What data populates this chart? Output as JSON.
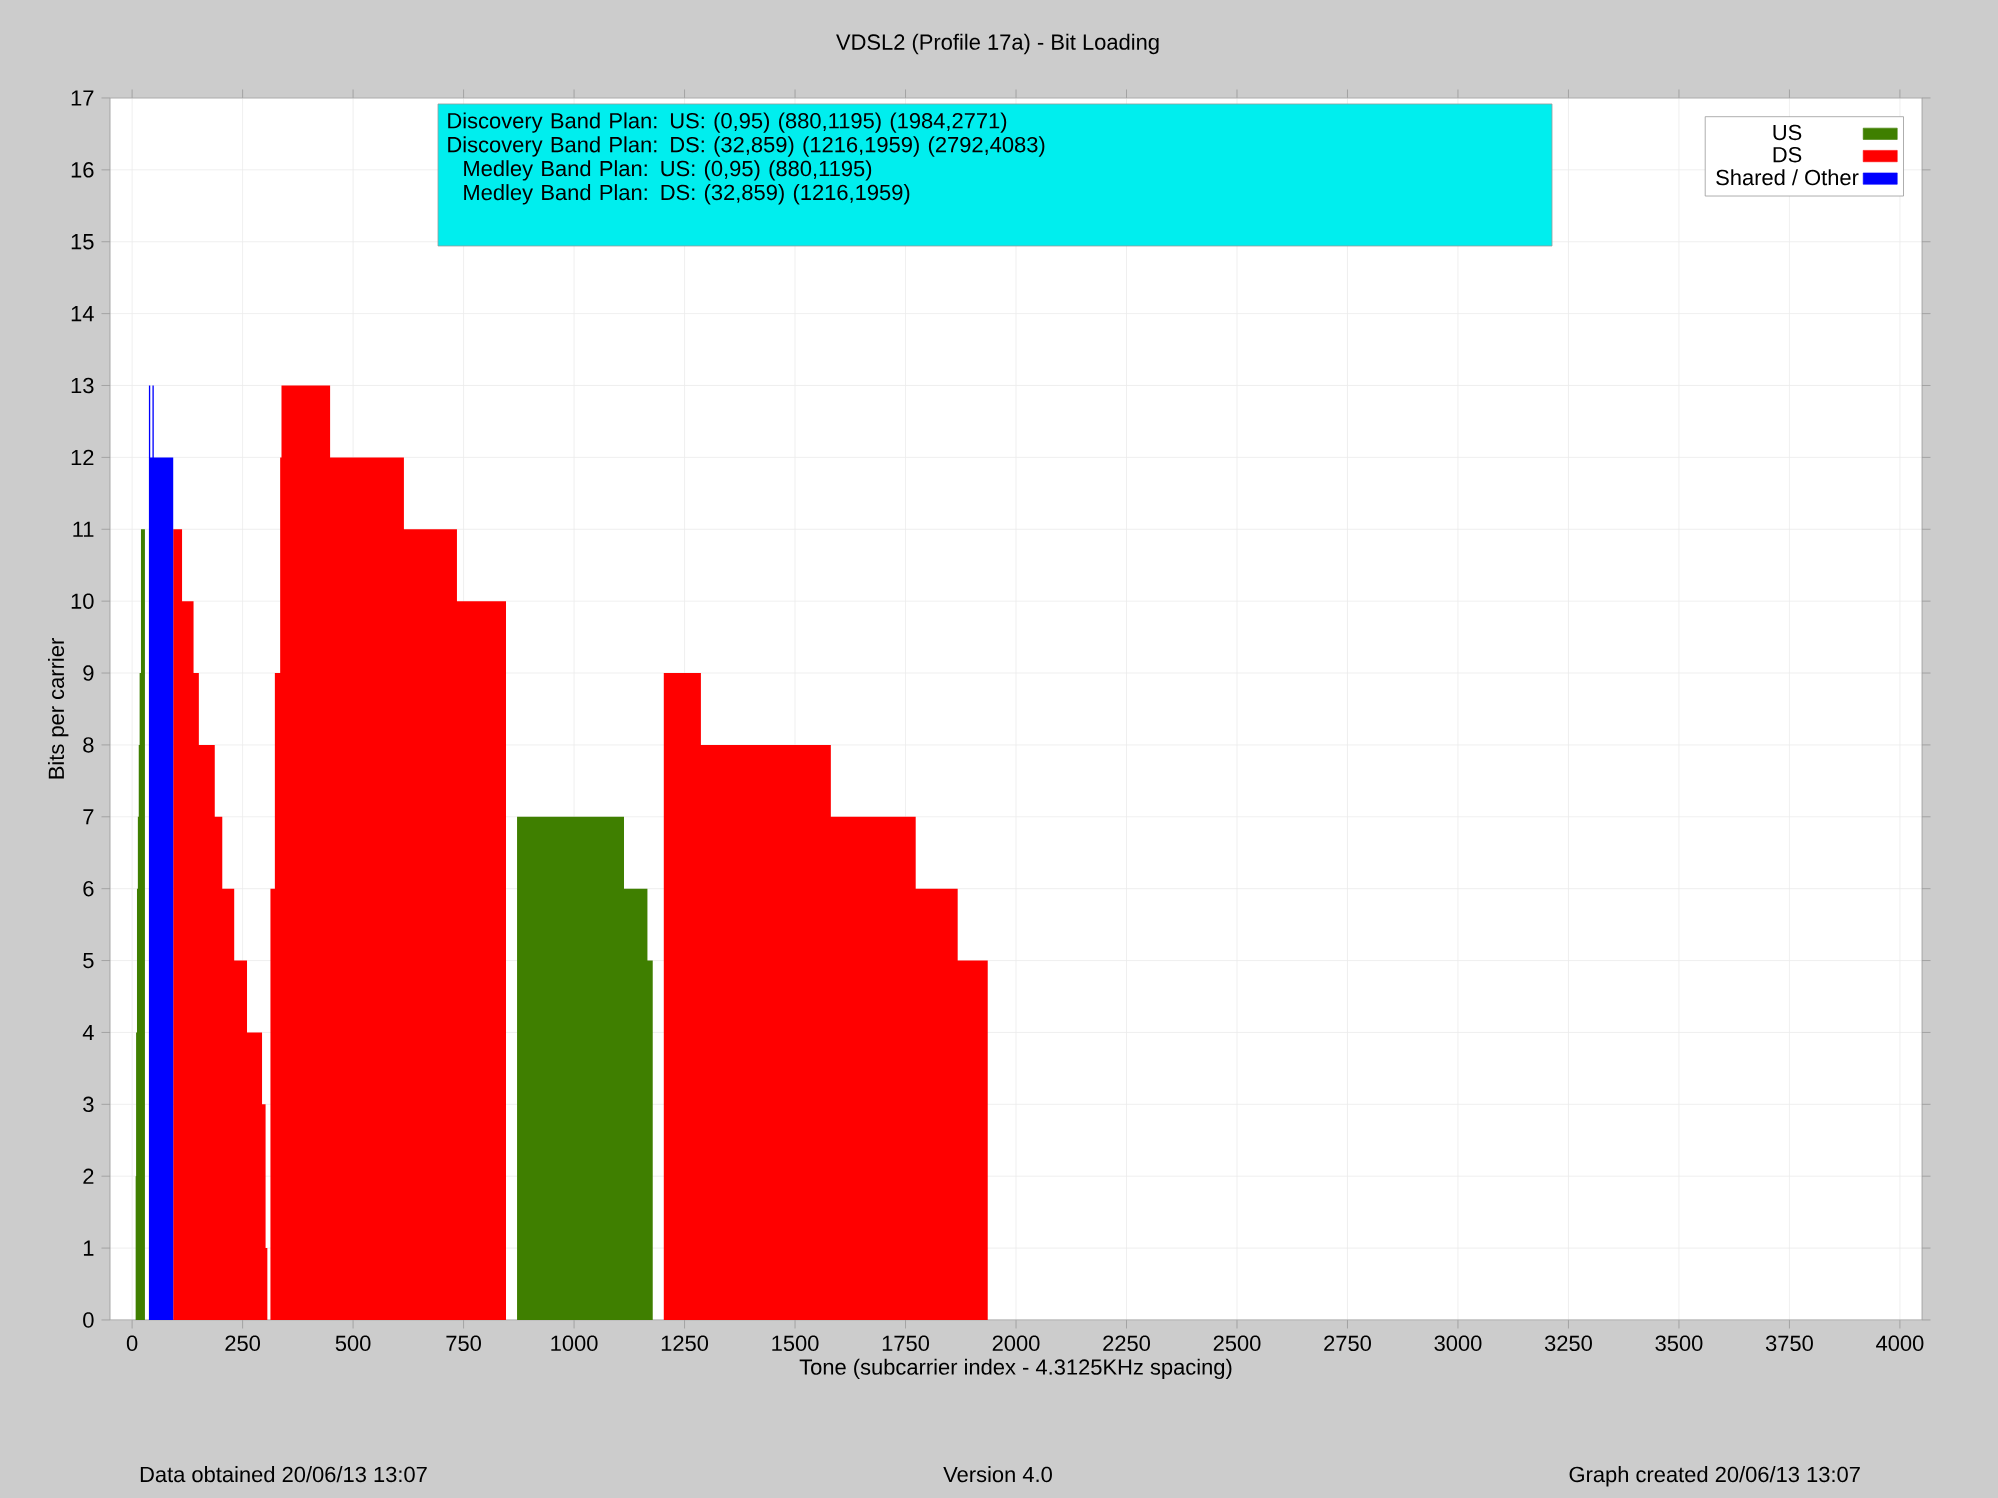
{
  "chart_data": {
    "type": "area",
    "title": "VDSL2 (Profile 17a) - Bit Loading",
    "xlabel": "Tone (subcarrier index - 4.3125KHz spacing)",
    "ylabel": "Bits per carrier",
    "series": [
      {
        "name": "US",
        "color": "#3f7f00",
        "x": [
          8,
          9,
          11,
          13,
          15,
          17,
          20,
          29,
          871,
          1113,
          1166,
          1178
        ],
        "values": [
          2,
          4,
          6,
          7,
          8,
          9,
          11,
          0,
          7,
          6,
          5,
          0
        ]
      },
      {
        "name": "DS",
        "color": "#ff0000",
        "x": [
          93,
          113,
          139,
          151,
          187,
          204,
          231,
          260,
          294,
          302,
          306,
          313,
          323,
          335,
          338,
          448,
          615,
          735,
          846,
          1203,
          1287,
          1581,
          1773,
          1868,
          1936
        ],
        "values": [
          11,
          10,
          9,
          8,
          7,
          6,
          5,
          4,
          3,
          1,
          0,
          6,
          9,
          12,
          13,
          12,
          11,
          10,
          0,
          9,
          8,
          7,
          6,
          5,
          0
        ]
      },
      {
        "name": "Shared / Other",
        "color": "#0000ff",
        "x": [
          38,
          41,
          46,
          49,
          93
        ],
        "values": [
          13,
          12,
          13,
          12,
          0
        ]
      }
    ],
    "xlim": [
      -50,
      4050
    ],
    "ylim": [
      0,
      17
    ],
    "xticks": [
      0,
      250,
      500,
      750,
      1000,
      1250,
      1500,
      1750,
      2000,
      2250,
      2500,
      2750,
      3000,
      3250,
      3500,
      3750,
      4000
    ],
    "yticks": [
      0,
      1,
      2,
      3,
      4,
      5,
      6,
      7,
      8,
      9,
      10,
      11,
      12,
      13,
      14,
      15,
      16,
      17
    ],
    "grid": true,
    "legend": "top right",
    "annotations": [
      "Discovery Band Plan: US: (0,95) (880,1195) (1984,2771)",
      "Discovery Band Plan: DS: (32,859) (1216,1959) (2792,4083)",
      "Medley Band Plan: US: (0,95) (880,1195)",
      "Medley Band Plan: DS: (32,859) (1216,1959)",
      "Data obtained 20/06/13 13:07",
      "Version 4.0",
      "Graph created 20/06/13 13:07"
    ]
  }
}
